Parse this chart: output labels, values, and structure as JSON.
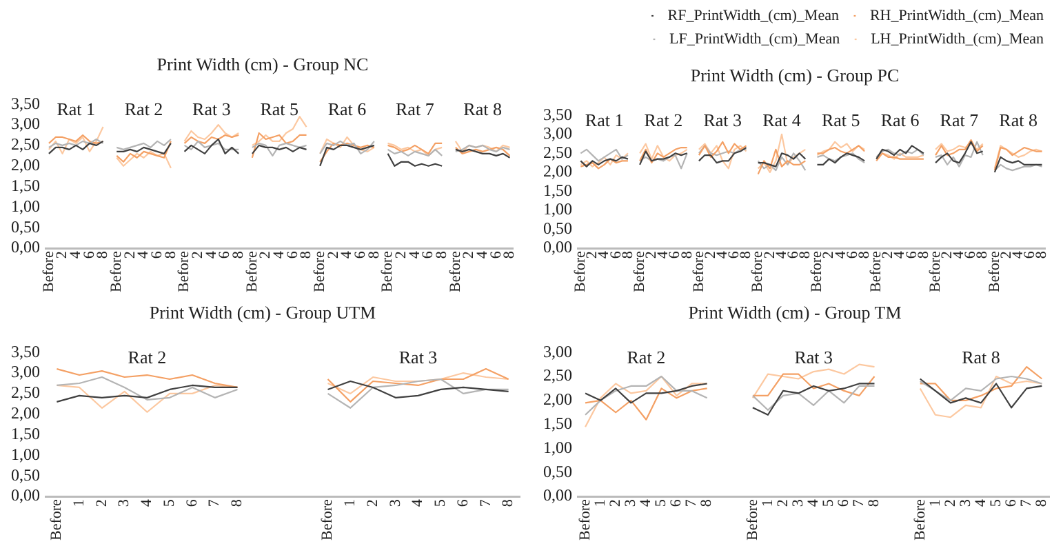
{
  "chart_data": [
    {
      "type": "line",
      "title": "Print Width (cm) - Group NC",
      "marker": "none",
      "categories": [
        "Before",
        null,
        "2",
        null,
        "4",
        null,
        "6",
        null,
        "8",
        null,
        "Before",
        null,
        "2",
        null,
        "4",
        null,
        "6",
        null,
        "8",
        null,
        "Before",
        null,
        "2",
        null,
        "4",
        null,
        "6",
        null,
        "8",
        null,
        "Before",
        null,
        "2",
        null,
        "4",
        null,
        "6",
        null,
        "8",
        null,
        "Before",
        null,
        "2",
        null,
        "4",
        null,
        "6",
        null,
        "8",
        null,
        "Before",
        null,
        "2",
        null,
        "4",
        null,
        "6",
        null,
        "8",
        null,
        "Before",
        null,
        "2",
        null,
        "4",
        null,
        "6",
        null,
        "8"
      ],
      "annotations": [
        "Rat 1",
        "Rat 2",
        "Rat 3",
        "Rat 5",
        "Rat 6",
        "Rat 7",
        "Rat 8"
      ],
      "ylim": [
        0,
        3.5
      ],
      "yticks": [
        {
          "value": 0,
          "label": "0,00"
        },
        {
          "value": 0.5,
          "label": "0,50"
        },
        {
          "value": 1,
          "label": "1,00"
        },
        {
          "value": 1.5,
          "label": "1,50"
        },
        {
          "value": 2,
          "label": "2,00"
        },
        {
          "value": 2.5,
          "label": "2,50"
        },
        {
          "value": 3,
          "label": "3,00"
        },
        {
          "value": 3.5,
          "label": "3,50"
        }
      ],
      "series": [
        {
          "color": "#404040",
          "values": [
            2.3,
            2.45,
            2.45,
            2.4,
            2.5,
            2.4,
            2.55,
            2.5,
            2.6,
            null,
            2.35,
            2.35,
            2.4,
            2.35,
            2.45,
            2.4,
            2.35,
            2.3,
            2.55,
            null,
            2.35,
            2.5,
            2.4,
            2.3,
            2.5,
            2.65,
            2.3,
            2.45,
            2.3,
            null,
            2.3,
            2.5,
            2.45,
            2.45,
            2.4,
            2.45,
            2.35,
            2.45,
            2.4,
            null,
            2.0,
            2.45,
            2.4,
            2.5,
            2.5,
            2.45,
            2.4,
            2.45,
            2.5,
            null,
            2.3,
            2.0,
            2.1,
            2.1,
            2.0,
            2.05,
            2.0,
            2.05,
            2.0,
            null,
            2.4,
            2.35,
            2.4,
            2.35,
            2.3,
            2.3,
            2.25,
            2.3,
            2.2
          ]
        },
        {
          "color": "#b4b4b4",
          "values": [
            2.45,
            2.55,
            2.5,
            2.55,
            2.5,
            2.6,
            2.55,
            2.65,
            2.55,
            null,
            2.45,
            2.4,
            2.45,
            2.5,
            2.55,
            2.45,
            2.6,
            2.5,
            2.65,
            null,
            2.5,
            2.4,
            2.6,
            2.45,
            2.5,
            2.55,
            2.4,
            2.4,
            2.4,
            null,
            2.45,
            2.55,
            2.5,
            2.25,
            2.5,
            2.55,
            2.5,
            2.45,
            2.5,
            null,
            2.3,
            2.55,
            2.5,
            2.6,
            2.5,
            2.55,
            2.3,
            2.4,
            2.6,
            null,
            2.4,
            2.3,
            2.35,
            2.25,
            2.35,
            2.3,
            2.25,
            2.4,
            2.25,
            null,
            2.35,
            2.4,
            2.5,
            2.45,
            2.5,
            2.4,
            2.35,
            2.45,
            2.4
          ]
        },
        {
          "color": "#f4a064",
          "values": [
            2.55,
            2.7,
            2.7,
            2.65,
            2.6,
            2.75,
            2.6,
            2.55,
            2.6,
            null,
            2.25,
            2.1,
            2.3,
            2.2,
            2.35,
            2.3,
            2.25,
            2.2,
            2.6,
            null,
            2.55,
            2.7,
            2.6,
            2.55,
            2.7,
            2.65,
            2.75,
            2.7,
            2.75,
            null,
            2.2,
            2.8,
            2.65,
            2.7,
            2.75,
            2.55,
            2.6,
            2.75,
            2.75,
            null,
            2.1,
            2.35,
            2.55,
            2.5,
            2.55,
            2.5,
            2.45,
            2.5,
            2.45,
            null,
            2.5,
            2.45,
            2.35,
            2.4,
            2.5,
            2.4,
            2.3,
            2.55,
            2.55,
            null,
            2.45,
            2.3,
            2.35,
            2.4,
            2.35,
            2.4,
            2.45,
            2.4,
            2.25
          ]
        },
        {
          "color": "#fcc8a0",
          "values": [
            2.4,
            2.6,
            2.3,
            2.65,
            2.55,
            2.7,
            2.35,
            2.6,
            2.95,
            null,
            2.2,
            2.0,
            2.15,
            2.3,
            2.2,
            2.35,
            2.25,
            2.3,
            1.95,
            null,
            2.6,
            2.85,
            2.7,
            2.65,
            2.8,
            3.0,
            2.8,
            2.7,
            2.8,
            null,
            2.5,
            2.6,
            2.75,
            2.6,
            2.6,
            2.8,
            2.9,
            3.2,
            2.95,
            null,
            2.3,
            2.65,
            2.55,
            2.45,
            2.7,
            2.5,
            2.4,
            2.35,
            2.45,
            null,
            2.55,
            2.5,
            2.4,
            2.45,
            2.35,
            2.4,
            2.25,
            2.4,
            2.45,
            null,
            2.6,
            2.35,
            2.5,
            2.45,
            2.5,
            2.45,
            2.35,
            2.5,
            2.45
          ]
        }
      ]
    },
    {
      "type": "line",
      "title": "Print Width (cm) - Group PC",
      "marker": "none",
      "legend": "top",
      "categories": [
        "Before",
        null,
        "2",
        null,
        "4",
        null,
        "6",
        null,
        "8",
        null,
        "Before",
        null,
        "2",
        null,
        "4",
        null,
        "6",
        null,
        "8",
        null,
        "Before",
        null,
        "2",
        null,
        "4",
        null,
        "6",
        null,
        "8",
        null,
        "Before",
        null,
        "2",
        null,
        "4",
        null,
        "6",
        null,
        "8",
        null,
        "Before",
        null,
        "2",
        null,
        "4",
        null,
        "6",
        null,
        "8",
        null,
        "Before",
        null,
        "2",
        null,
        "4",
        null,
        "6",
        null,
        "8",
        null,
        "Before",
        null,
        "2",
        null,
        "4",
        null,
        "6",
        null,
        "8",
        null,
        "Before",
        null,
        "2",
        null,
        "4",
        null,
        "6",
        null,
        "8"
      ],
      "annotations": [
        "Rat 1",
        "Rat 2",
        "Rat 3",
        "Rat 4",
        "Rat 5",
        "Rat 6",
        "Rat 7",
        "Rat 8"
      ],
      "ylim": [
        0,
        3.5
      ],
      "yticks": [
        {
          "value": 0,
          "label": "0,00"
        },
        {
          "value": 0.5,
          "label": "0,50"
        },
        {
          "value": 1,
          "label": "1,00"
        },
        {
          "value": 1.5,
          "label": "1,50"
        },
        {
          "value": 2,
          "label": "2,00"
        },
        {
          "value": 2.5,
          "label": "2,50"
        },
        {
          "value": 3,
          "label": "3,00"
        },
        {
          "value": 3.5,
          "label": "3,50"
        }
      ],
      "series": [
        {
          "name": "RF_PrintWidth_(cm)_Mean",
          "color": "#404040",
          "values": [
            2.3,
            2.15,
            2.3,
            2.2,
            2.3,
            2.35,
            2.3,
            2.4,
            2.35,
            null,
            2.2,
            2.55,
            2.3,
            2.35,
            2.35,
            2.4,
            2.5,
            2.45,
            2.5,
            null,
            2.3,
            2.45,
            2.45,
            2.25,
            2.3,
            2.3,
            2.5,
            2.55,
            2.65,
            null,
            2.25,
            2.25,
            2.2,
            2.15,
            2.5,
            2.45,
            2.35,
            2.5,
            2.35,
            null,
            2.2,
            2.2,
            2.35,
            2.25,
            2.4,
            2.5,
            2.45,
            2.4,
            2.3,
            null,
            2.35,
            2.6,
            2.55,
            2.45,
            2.6,
            2.5,
            2.7,
            2.6,
            2.5,
            null,
            2.25,
            2.4,
            2.5,
            2.3,
            2.25,
            2.5,
            2.8,
            2.5,
            2.55,
            null,
            2.0,
            2.4,
            2.3,
            2.25,
            2.3,
            2.2,
            2.2,
            2.2,
            2.2
          ]
        },
        {
          "name": "RH_PrintWidth_(cm)_Mean",
          "color": "#f4a064",
          "values": [
            2.15,
            2.2,
            2.25,
            2.1,
            2.2,
            2.35,
            2.25,
            2.3,
            2.3,
            null,
            2.3,
            2.6,
            2.25,
            2.5,
            2.4,
            2.5,
            2.6,
            2.65,
            2.65,
            null,
            2.45,
            2.7,
            2.4,
            2.55,
            2.8,
            2.5,
            2.75,
            2.6,
            2.7,
            null,
            1.95,
            2.3,
            2.1,
            2.6,
            2.15,
            2.3,
            2.2,
            2.2,
            2.3,
            null,
            2.5,
            2.5,
            2.6,
            2.65,
            2.55,
            2.5,
            2.6,
            2.7,
            2.55,
            null,
            2.3,
            2.5,
            2.4,
            2.4,
            2.35,
            2.35,
            2.35,
            2.35,
            2.35,
            null,
            2.45,
            2.7,
            2.45,
            2.5,
            2.6,
            2.6,
            2.85,
            2.55,
            2.7,
            null,
            2.05,
            2.65,
            2.6,
            2.45,
            2.55,
            2.65,
            2.6,
            2.55,
            2.55
          ]
        },
        {
          "name": "LF_PrintWidth_(cm)_Mean",
          "color": "#b4b4b4",
          "values": [
            2.5,
            2.6,
            2.45,
            2.3,
            2.4,
            2.5,
            2.6,
            2.35,
            2.45,
            null,
            2.3,
            2.4,
            2.3,
            2.35,
            2.3,
            2.4,
            2.45,
            2.1,
            2.5,
            null,
            2.5,
            2.7,
            2.5,
            2.45,
            2.5,
            2.55,
            2.5,
            2.6,
            2.6,
            null,
            2.3,
            2.1,
            2.2,
            2.05,
            2.4,
            2.2,
            2.5,
            2.3,
            2.05,
            null,
            2.4,
            2.45,
            2.35,
            2.3,
            2.4,
            2.45,
            2.5,
            2.35,
            2.25,
            null,
            2.4,
            2.55,
            2.6,
            2.5,
            2.45,
            2.55,
            2.5,
            2.6,
            2.45,
            null,
            2.4,
            2.45,
            2.2,
            2.4,
            2.15,
            2.45,
            2.4,
            2.8,
            2.45,
            null,
            2.05,
            2.2,
            2.1,
            2.05,
            2.1,
            2.15,
            2.15,
            2.2,
            2.15
          ]
        },
        {
          "name": "LH_PrintWidth_(cm)_Mean",
          "color": "#fcc8a0",
          "values": [
            2.2,
            2.3,
            2.15,
            2.25,
            2.4,
            2.2,
            2.45,
            2.35,
            2.5,
            null,
            2.5,
            2.75,
            2.35,
            2.7,
            2.4,
            2.3,
            2.45,
            2.5,
            2.6,
            null,
            2.6,
            2.75,
            2.5,
            2.7,
            2.3,
            2.1,
            2.6,
            2.7,
            2.55,
            null,
            2.1,
            2.25,
            2.0,
            2.3,
            3.0,
            2.2,
            2.4,
            2.5,
            2.6,
            null,
            2.45,
            2.55,
            2.6,
            2.8,
            2.65,
            2.75,
            2.55,
            2.7,
            2.6,
            null,
            2.4,
            2.5,
            2.45,
            2.35,
            2.5,
            2.4,
            2.4,
            2.4,
            2.45,
            null,
            2.6,
            2.75,
            2.55,
            2.6,
            2.7,
            2.65,
            2.75,
            2.6,
            2.75,
            null,
            2.1,
            2.7,
            2.6,
            2.5,
            2.4,
            2.45,
            2.55,
            2.6,
            2.55
          ]
        }
      ]
    },
    {
      "type": "line",
      "title": "Print Width (cm) - Group UTM",
      "marker": "none",
      "categories": [
        "Before",
        "1",
        "2",
        "3",
        "4",
        "5",
        "6",
        "7",
        "8",
        null,
        null,
        null,
        "Before",
        "1",
        "2",
        "3",
        "4",
        "5",
        "6",
        "7",
        "8"
      ],
      "annotations": [
        "Rat 2",
        "Rat 3"
      ],
      "ylim": [
        0,
        3.5
      ],
      "yticks": [
        {
          "value": 0,
          "label": "0,00"
        },
        {
          "value": 0.5,
          "label": "0,50"
        },
        {
          "value": 1,
          "label": "1,00"
        },
        {
          "value": 1.5,
          "label": "1,50"
        },
        {
          "value": 2,
          "label": "2,00"
        },
        {
          "value": 2.5,
          "label": "2,50"
        },
        {
          "value": 3,
          "label": "3,00"
        },
        {
          "value": 3.5,
          "label": "3,50"
        }
      ],
      "series": [
        {
          "color": "#404040",
          "values": [
            2.3,
            2.45,
            2.4,
            2.45,
            2.4,
            2.6,
            2.7,
            2.65,
            2.65,
            null,
            null,
            null,
            2.6,
            2.8,
            2.65,
            2.4,
            2.45,
            2.6,
            2.65,
            2.6,
            2.55
          ]
        },
        {
          "color": "#b4b4b4",
          "values": [
            2.7,
            2.75,
            2.9,
            2.65,
            2.35,
            2.4,
            2.65,
            2.4,
            2.6,
            null,
            null,
            null,
            2.5,
            2.15,
            2.65,
            2.7,
            2.8,
            2.85,
            2.5,
            2.6,
            2.6
          ]
        },
        {
          "color": "#f4a064",
          "values": [
            3.1,
            2.95,
            3.05,
            2.9,
            2.95,
            2.85,
            2.95,
            2.75,
            2.65,
            null,
            null,
            null,
            2.85,
            2.3,
            2.8,
            2.75,
            2.7,
            2.85,
            2.85,
            3.1,
            2.85
          ]
        },
        {
          "color": "#fcc8a0",
          "values": [
            2.7,
            2.65,
            2.15,
            2.55,
            2.05,
            2.5,
            2.5,
            2.7,
            2.65,
            null,
            null,
            null,
            2.75,
            2.5,
            2.9,
            2.8,
            2.8,
            2.85,
            3.0,
            2.9,
            2.85
          ]
        }
      ]
    },
    {
      "type": "line",
      "title": "Print Width (cm) - Group TM",
      "marker": "none",
      "categories": [
        "Before",
        "1",
        "2",
        "3",
        "4",
        "5",
        "6",
        "7",
        "8",
        null,
        null,
        "Before",
        "1",
        "2",
        "3",
        "4",
        "5",
        "6",
        "7",
        "8",
        null,
        null,
        "Before",
        "1",
        "2",
        "3",
        "4",
        "5",
        "6",
        "7",
        "8"
      ],
      "annotations": [
        "Rat 2",
        "Rat 3",
        "Rat 8"
      ],
      "ylim": [
        0,
        3
      ],
      "yticks": [
        {
          "value": 0,
          "label": "0,00"
        },
        {
          "value": 0.5,
          "label": "0,50"
        },
        {
          "value": 1,
          "label": "1,00"
        },
        {
          "value": 1.5,
          "label": "1,50"
        },
        {
          "value": 2,
          "label": "2,00"
        },
        {
          "value": 2.5,
          "label": "2,50"
        },
        {
          "value": 3,
          "label": "3,00"
        }
      ],
      "series": [
        {
          "color": "#404040",
          "values": [
            2.15,
            2.0,
            2.25,
            1.95,
            2.15,
            2.15,
            2.2,
            2.3,
            2.35,
            null,
            null,
            1.85,
            1.7,
            2.2,
            2.15,
            2.3,
            2.2,
            2.25,
            2.35,
            2.35,
            null,
            null,
            2.45,
            2.2,
            1.95,
            2.05,
            1.95,
            2.35,
            1.85,
            2.25,
            2.3
          ]
        },
        {
          "color": "#b4b4b4",
          "values": [
            1.7,
            2.0,
            2.2,
            2.3,
            2.3,
            2.5,
            2.2,
            2.2,
            2.05,
            null,
            null,
            2.1,
            1.8,
            2.1,
            2.15,
            1.9,
            2.2,
            1.95,
            2.3,
            2.3,
            null,
            null,
            2.4,
            2.2,
            2.0,
            2.25,
            2.2,
            2.45,
            2.5,
            2.45,
            2.35
          ]
        },
        {
          "color": "#f4a064",
          "values": [
            1.95,
            2.0,
            1.75,
            2.0,
            1.6,
            2.25,
            2.05,
            2.2,
            2.25,
            null,
            null,
            2.1,
            2.1,
            2.55,
            2.55,
            2.25,
            2.35,
            2.2,
            2.1,
            2.5,
            null,
            null,
            2.35,
            2.35,
            2.0,
            2.0,
            2.1,
            2.25,
            2.3,
            2.7,
            2.45
          ]
        },
        {
          "color": "#fcc8a0",
          "values": [
            1.45,
            2.05,
            2.35,
            2.15,
            2.2,
            2.5,
            2.1,
            2.35,
            2.35,
            null,
            null,
            2.05,
            2.55,
            2.5,
            2.45,
            2.6,
            2.65,
            2.55,
            2.75,
            2.7,
            null,
            null,
            2.25,
            1.7,
            1.65,
            1.9,
            1.85,
            2.5,
            2.35,
            2.4,
            2.35
          ]
        }
      ]
    }
  ]
}
